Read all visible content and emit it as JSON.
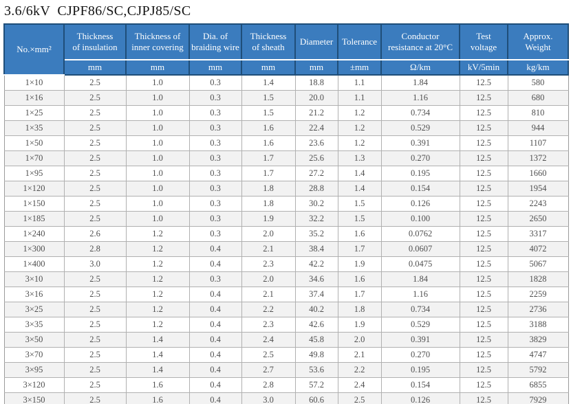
{
  "title": "3.6/6kV  CJPF86/SC,CJPJ85/SC",
  "table": {
    "columns": [
      {
        "line1": "No.×mm²",
        "line2": "",
        "unit": ""
      },
      {
        "line1": "Thickness",
        "line2": "of insulation",
        "unit": "mm"
      },
      {
        "line1": "Thickness of",
        "line2": "inner covering",
        "unit": "mm"
      },
      {
        "line1": "Dia. of",
        "line2": "braiding wire",
        "unit": "mm"
      },
      {
        "line1": "Thickness",
        "line2": "of sheath",
        "unit": "mm"
      },
      {
        "line1": "Diameter",
        "line2": "",
        "unit": "mm"
      },
      {
        "line1": "Tolerance",
        "line2": "",
        "unit": "±mm"
      },
      {
        "line1": "Conductor",
        "line2": "resistance at 20°C",
        "unit": "Ω/km"
      },
      {
        "line1": "Test",
        "line2": "voltage",
        "unit": "kV/5min"
      },
      {
        "line1": "Approx.",
        "line2": "Weight",
        "unit": "kg/km"
      }
    ],
    "rows": [
      [
        "1×10",
        "2.5",
        "1.0",
        "0.3",
        "1.4",
        "18.8",
        "1.1",
        "1.84",
        "12.5",
        "580"
      ],
      [
        "1×16",
        "2.5",
        "1.0",
        "0.3",
        "1.5",
        "20.0",
        "1.1",
        "1.16",
        "12.5",
        "680"
      ],
      [
        "1×25",
        "2.5",
        "1.0",
        "0.3",
        "1.5",
        "21.2",
        "1.2",
        "0.734",
        "12.5",
        "810"
      ],
      [
        "1×35",
        "2.5",
        "1.0",
        "0.3",
        "1.6",
        "22.4",
        "1.2",
        "0.529",
        "12.5",
        "944"
      ],
      [
        "1×50",
        "2.5",
        "1.0",
        "0.3",
        "1.6",
        "23.6",
        "1.2",
        "0.391",
        "12.5",
        "1107"
      ],
      [
        "1×70",
        "2.5",
        "1.0",
        "0.3",
        "1.7",
        "25.6",
        "1.3",
        "0.270",
        "12.5",
        "1372"
      ],
      [
        "1×95",
        "2.5",
        "1.0",
        "0.3",
        "1.7",
        "27.2",
        "1.4",
        "0.195",
        "12.5",
        "1660"
      ],
      [
        "1×120",
        "2.5",
        "1.0",
        "0.3",
        "1.8",
        "28.8",
        "1.4",
        "0.154",
        "12.5",
        "1954"
      ],
      [
        "1×150",
        "2.5",
        "1.0",
        "0.3",
        "1.8",
        "30.2",
        "1.5",
        "0.126",
        "12.5",
        "2243"
      ],
      [
        "1×185",
        "2.5",
        "1.0",
        "0.3",
        "1.9",
        "32.2",
        "1.5",
        "0.100",
        "12.5",
        "2650"
      ],
      [
        "1×240",
        "2.6",
        "1.2",
        "0.3",
        "2.0",
        "35.2",
        "1.6",
        "0.0762",
        "12.5",
        "3317"
      ],
      [
        "1×300",
        "2.8",
        "1.2",
        "0.4",
        "2.1",
        "38.4",
        "1.7",
        "0.0607",
        "12.5",
        "4072"
      ],
      [
        "1×400",
        "3.0",
        "1.2",
        "0.4",
        "2.3",
        "42.2",
        "1.9",
        "0.0475",
        "12.5",
        "5067"
      ],
      [
        "3×10",
        "2.5",
        "1.2",
        "0.3",
        "2.0",
        "34.6",
        "1.6",
        "1.84",
        "12.5",
        "1828"
      ],
      [
        "3×16",
        "2.5",
        "1.2",
        "0.4",
        "2.1",
        "37.4",
        "1.7",
        "1.16",
        "12.5",
        "2259"
      ],
      [
        "3×25",
        "2.5",
        "1.2",
        "0.4",
        "2.2",
        "40.2",
        "1.8",
        "0.734",
        "12.5",
        "2736"
      ],
      [
        "3×35",
        "2.5",
        "1.2",
        "0.4",
        "2.3",
        "42.6",
        "1.9",
        "0.529",
        "12.5",
        "3188"
      ],
      [
        "3×50",
        "2.5",
        "1.4",
        "0.4",
        "2.4",
        "45.8",
        "2.0",
        "0.391",
        "12.5",
        "3829"
      ],
      [
        "3×70",
        "2.5",
        "1.4",
        "0.4",
        "2.5",
        "49.8",
        "2.1",
        "0.270",
        "12.5",
        "4747"
      ],
      [
        "3×95",
        "2.5",
        "1.4",
        "0.4",
        "2.7",
        "53.6",
        "2.2",
        "0.195",
        "12.5",
        "5792"
      ],
      [
        "3×120",
        "2.5",
        "1.6",
        "0.4",
        "2.8",
        "57.2",
        "2.4",
        "0.154",
        "12.5",
        "6855"
      ],
      [
        "3×150",
        "2.5",
        "1.6",
        "0.4",
        "3.0",
        "60.6",
        "2.5",
        "0.126",
        "12.5",
        "7929"
      ]
    ]
  }
}
